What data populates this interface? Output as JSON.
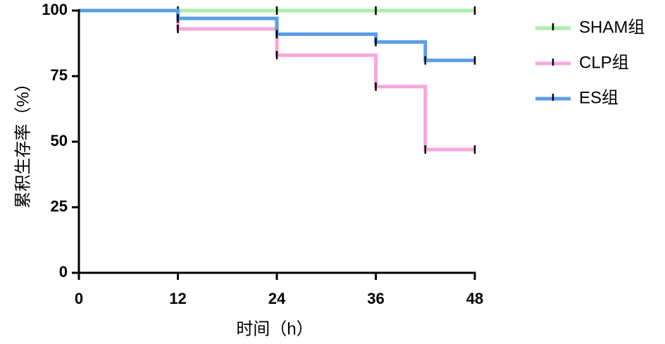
{
  "chart_data": {
    "type": "step",
    "xlabel": "时间（h）",
    "ylabel": "累积生存率（%）",
    "xlim": [
      0,
      48
    ],
    "xticks": [
      0,
      12,
      24,
      36,
      48
    ],
    "ylim": [
      0,
      100
    ],
    "yticks": [
      0,
      25,
      50,
      75,
      100
    ],
    "series": [
      {
        "name": "SHAM组",
        "color": "#a8f0a8",
        "x": [
          0,
          12,
          24,
          36,
          48
        ],
        "values": [
          100,
          100,
          100,
          100,
          100
        ]
      },
      {
        "name": "CLP组",
        "color": "#f5a8dc",
        "x": [
          0,
          12,
          24,
          36,
          42,
          48
        ],
        "values": [
          100,
          93,
          83,
          71,
          47,
          47
        ]
      },
      {
        "name": "ES组",
        "color": "#5b9ee8",
        "x": [
          0,
          12,
          24,
          36,
          42,
          48
        ],
        "values": [
          100,
          97,
          91,
          88,
          81,
          81
        ]
      }
    ]
  }
}
